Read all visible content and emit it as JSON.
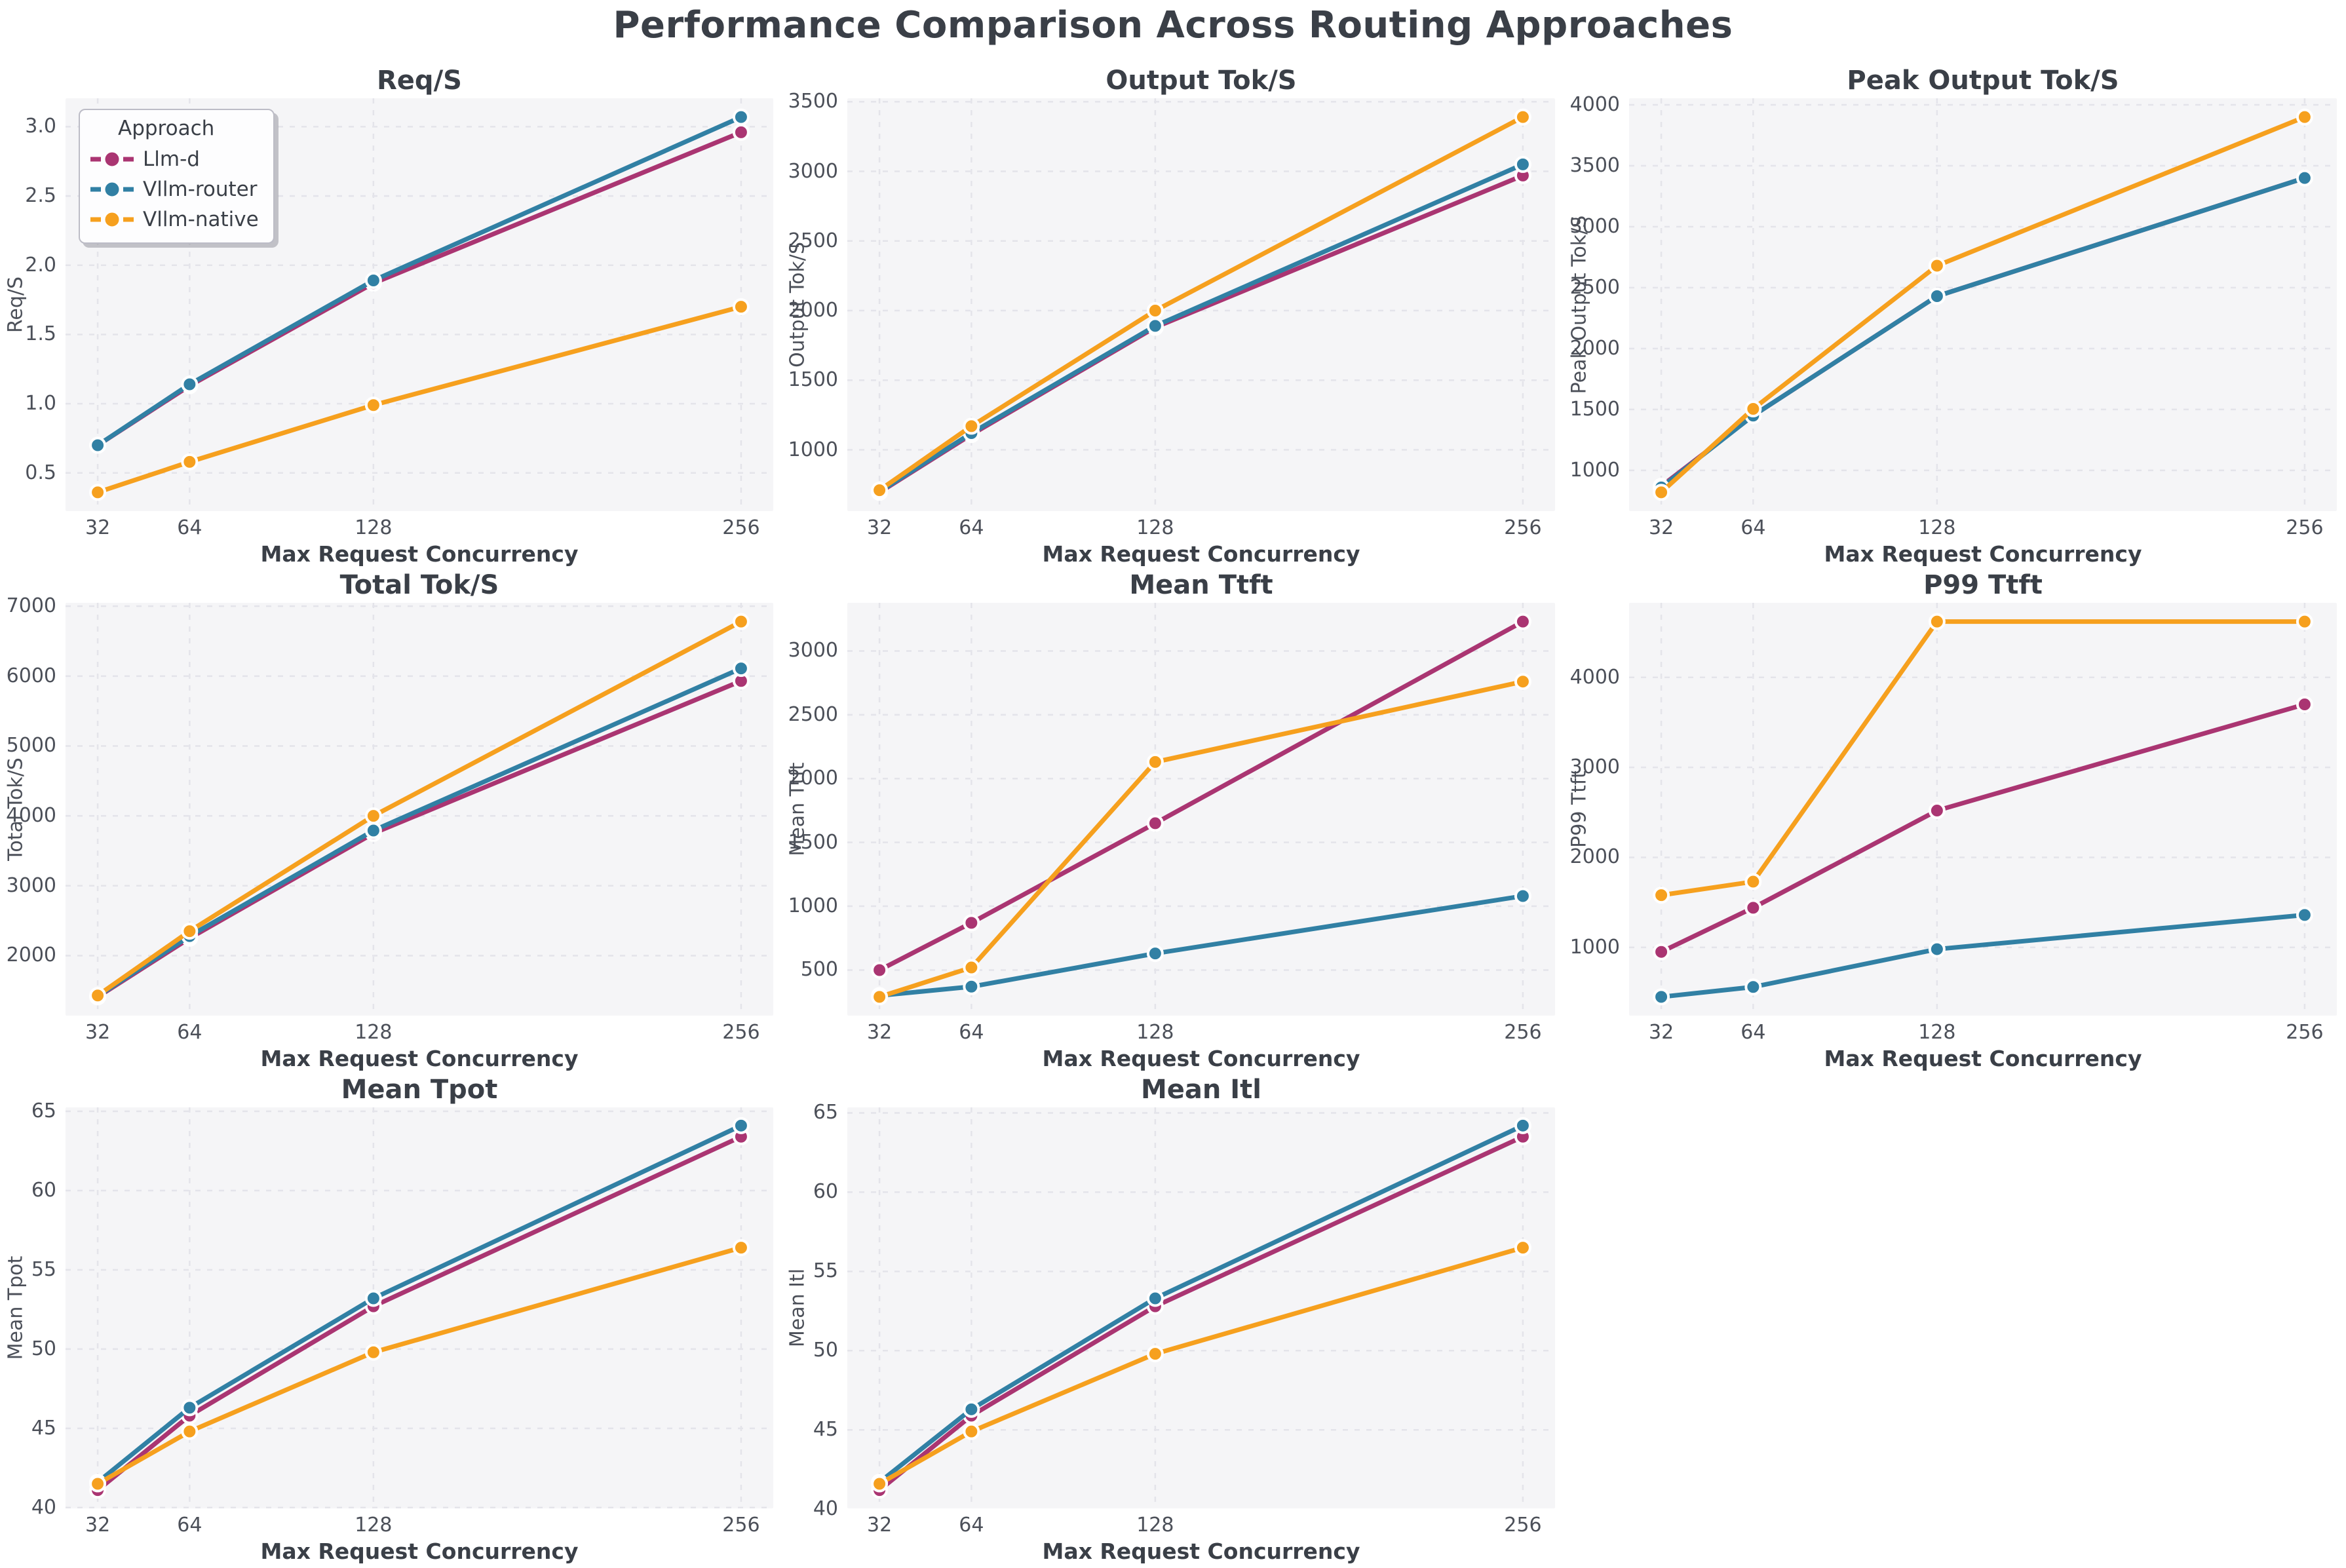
{
  "figure_title": "Performance Comparison Across Routing Approaches",
  "legend": {
    "title": "Approach",
    "items": [
      {
        "label": "Llm-d",
        "color": "#aa3572"
      },
      {
        "label": "Vllm-router",
        "color": "#3180a4"
      },
      {
        "label": "Vllm-native",
        "color": "#f6a01e"
      }
    ]
  },
  "x_axis": {
    "label": "Max Request Concurrency",
    "ticks": [
      32,
      64,
      128,
      256
    ]
  },
  "chart_data": [
    {
      "type": "line",
      "title": "Req/S",
      "ylabel": "Req/S",
      "xlabel": "Max Request Concurrency",
      "x": [
        32,
        64,
        128,
        256
      ],
      "yticks": [
        0.5,
        1.0,
        1.5,
        2.0,
        2.5,
        3.0
      ],
      "tick_decimals": 1,
      "series": [
        {
          "name": "Llm-d",
          "values": [
            0.7,
            1.13,
            1.87,
            2.96
          ]
        },
        {
          "name": "Vllm-router",
          "values": [
            0.7,
            1.14,
            1.89,
            3.07
          ]
        },
        {
          "name": "Vllm-native",
          "values": [
            0.36,
            0.58,
            0.99,
            1.7
          ]
        }
      ]
    },
    {
      "type": "line",
      "title": "Output Tok/S",
      "ylabel": "Output Tok/S",
      "xlabel": "Max Request Concurrency",
      "x": [
        32,
        64,
        128,
        256
      ],
      "yticks": [
        1000,
        1500,
        2000,
        2500,
        3000,
        3500
      ],
      "tick_decimals": 0,
      "series": [
        {
          "name": "Llm-d",
          "values": [
            695,
            1110,
            1880,
            2970
          ]
        },
        {
          "name": "Vllm-router",
          "values": [
            700,
            1120,
            1890,
            3050
          ]
        },
        {
          "name": "Vllm-native",
          "values": [
            710,
            1170,
            2000,
            3390
          ]
        }
      ]
    },
    {
      "type": "line",
      "title": "Peak Output Tok/S",
      "ylabel": "Peak Output Tok/S",
      "xlabel": "Max Request Concurrency",
      "x": [
        32,
        64,
        128,
        256
      ],
      "yticks": [
        1000,
        1500,
        2000,
        2500,
        3000,
        3500,
        4000
      ],
      "tick_decimals": 0,
      "series": [
        {
          "name": "Llm-d",
          "values": [
            870,
            1450,
            2430,
            3400
          ]
        },
        {
          "name": "Vllm-router",
          "values": [
            860,
            1450,
            2430,
            3400
          ]
        },
        {
          "name": "Vllm-native",
          "values": [
            820,
            1505,
            2680,
            3900
          ]
        }
      ]
    },
    {
      "type": "line",
      "title": "Total Tok/S",
      "ylabel": "Total Tok/S",
      "xlabel": "Max Request Concurrency",
      "x": [
        32,
        64,
        128,
        256
      ],
      "yticks": [
        2000,
        3000,
        4000,
        5000,
        6000,
        7000
      ],
      "tick_decimals": 0,
      "series": [
        {
          "name": "Llm-d",
          "values": [
            1410,
            2250,
            3750,
            5930
          ]
        },
        {
          "name": "Vllm-router",
          "values": [
            1420,
            2280,
            3790,
            6110
          ]
        },
        {
          "name": "Vllm-native",
          "values": [
            1430,
            2350,
            4000,
            6780
          ]
        }
      ]
    },
    {
      "type": "line",
      "title": "Mean Ttft",
      "ylabel": "Mean Ttft",
      "xlabel": "Max Request Concurrency",
      "x": [
        32,
        64,
        128,
        256
      ],
      "yticks": [
        500,
        1000,
        1500,
        2000,
        2500,
        3000
      ],
      "tick_decimals": 0,
      "series": [
        {
          "name": "Llm-d",
          "values": [
            500,
            870,
            1650,
            3230
          ]
        },
        {
          "name": "Vllm-router",
          "values": [
            300,
            370,
            630,
            1080
          ]
        },
        {
          "name": "Vllm-native",
          "values": [
            290,
            520,
            2130,
            2760
          ]
        }
      ]
    },
    {
      "type": "line",
      "title": "P99 Ttft",
      "ylabel": "P99 Ttft",
      "xlabel": "Max Request Concurrency",
      "x": [
        32,
        64,
        128,
        256
      ],
      "yticks": [
        1000,
        2000,
        3000,
        4000
      ],
      "tick_decimals": 0,
      "series": [
        {
          "name": "Llm-d",
          "values": [
            950,
            1440,
            2520,
            3700
          ]
        },
        {
          "name": "Vllm-router",
          "values": [
            450,
            560,
            980,
            1360
          ]
        },
        {
          "name": "Vllm-native",
          "values": [
            1580,
            1730,
            4620,
            4620
          ]
        }
      ]
    },
    {
      "type": "line",
      "title": "Mean Tpot",
      "ylabel": "Mean Tpot",
      "xlabel": "Max Request Concurrency",
      "x": [
        32,
        64,
        128,
        256
      ],
      "yticks": [
        40,
        45,
        50,
        55,
        60,
        65
      ],
      "tick_decimals": 0,
      "series": [
        {
          "name": "Llm-d",
          "values": [
            41.1,
            45.8,
            52.7,
            63.4
          ]
        },
        {
          "name": "Vllm-router",
          "values": [
            41.6,
            46.3,
            53.2,
            64.1
          ]
        },
        {
          "name": "Vllm-native",
          "values": [
            41.5,
            44.8,
            49.8,
            56.4
          ]
        }
      ]
    },
    {
      "type": "line",
      "title": "Mean Itl",
      "ylabel": "Mean Itl",
      "xlabel": "Max Request Concurrency",
      "x": [
        32,
        64,
        128,
        256
      ],
      "yticks": [
        40,
        45,
        50,
        55,
        60,
        65
      ],
      "tick_decimals": 0,
      "series": [
        {
          "name": "Llm-d",
          "values": [
            41.2,
            45.9,
            52.8,
            63.5
          ]
        },
        {
          "name": "Vllm-router",
          "values": [
            41.7,
            46.3,
            53.3,
            64.2
          ]
        },
        {
          "name": "Vllm-native",
          "values": [
            41.6,
            44.9,
            49.8,
            56.5
          ]
        }
      ]
    }
  ]
}
